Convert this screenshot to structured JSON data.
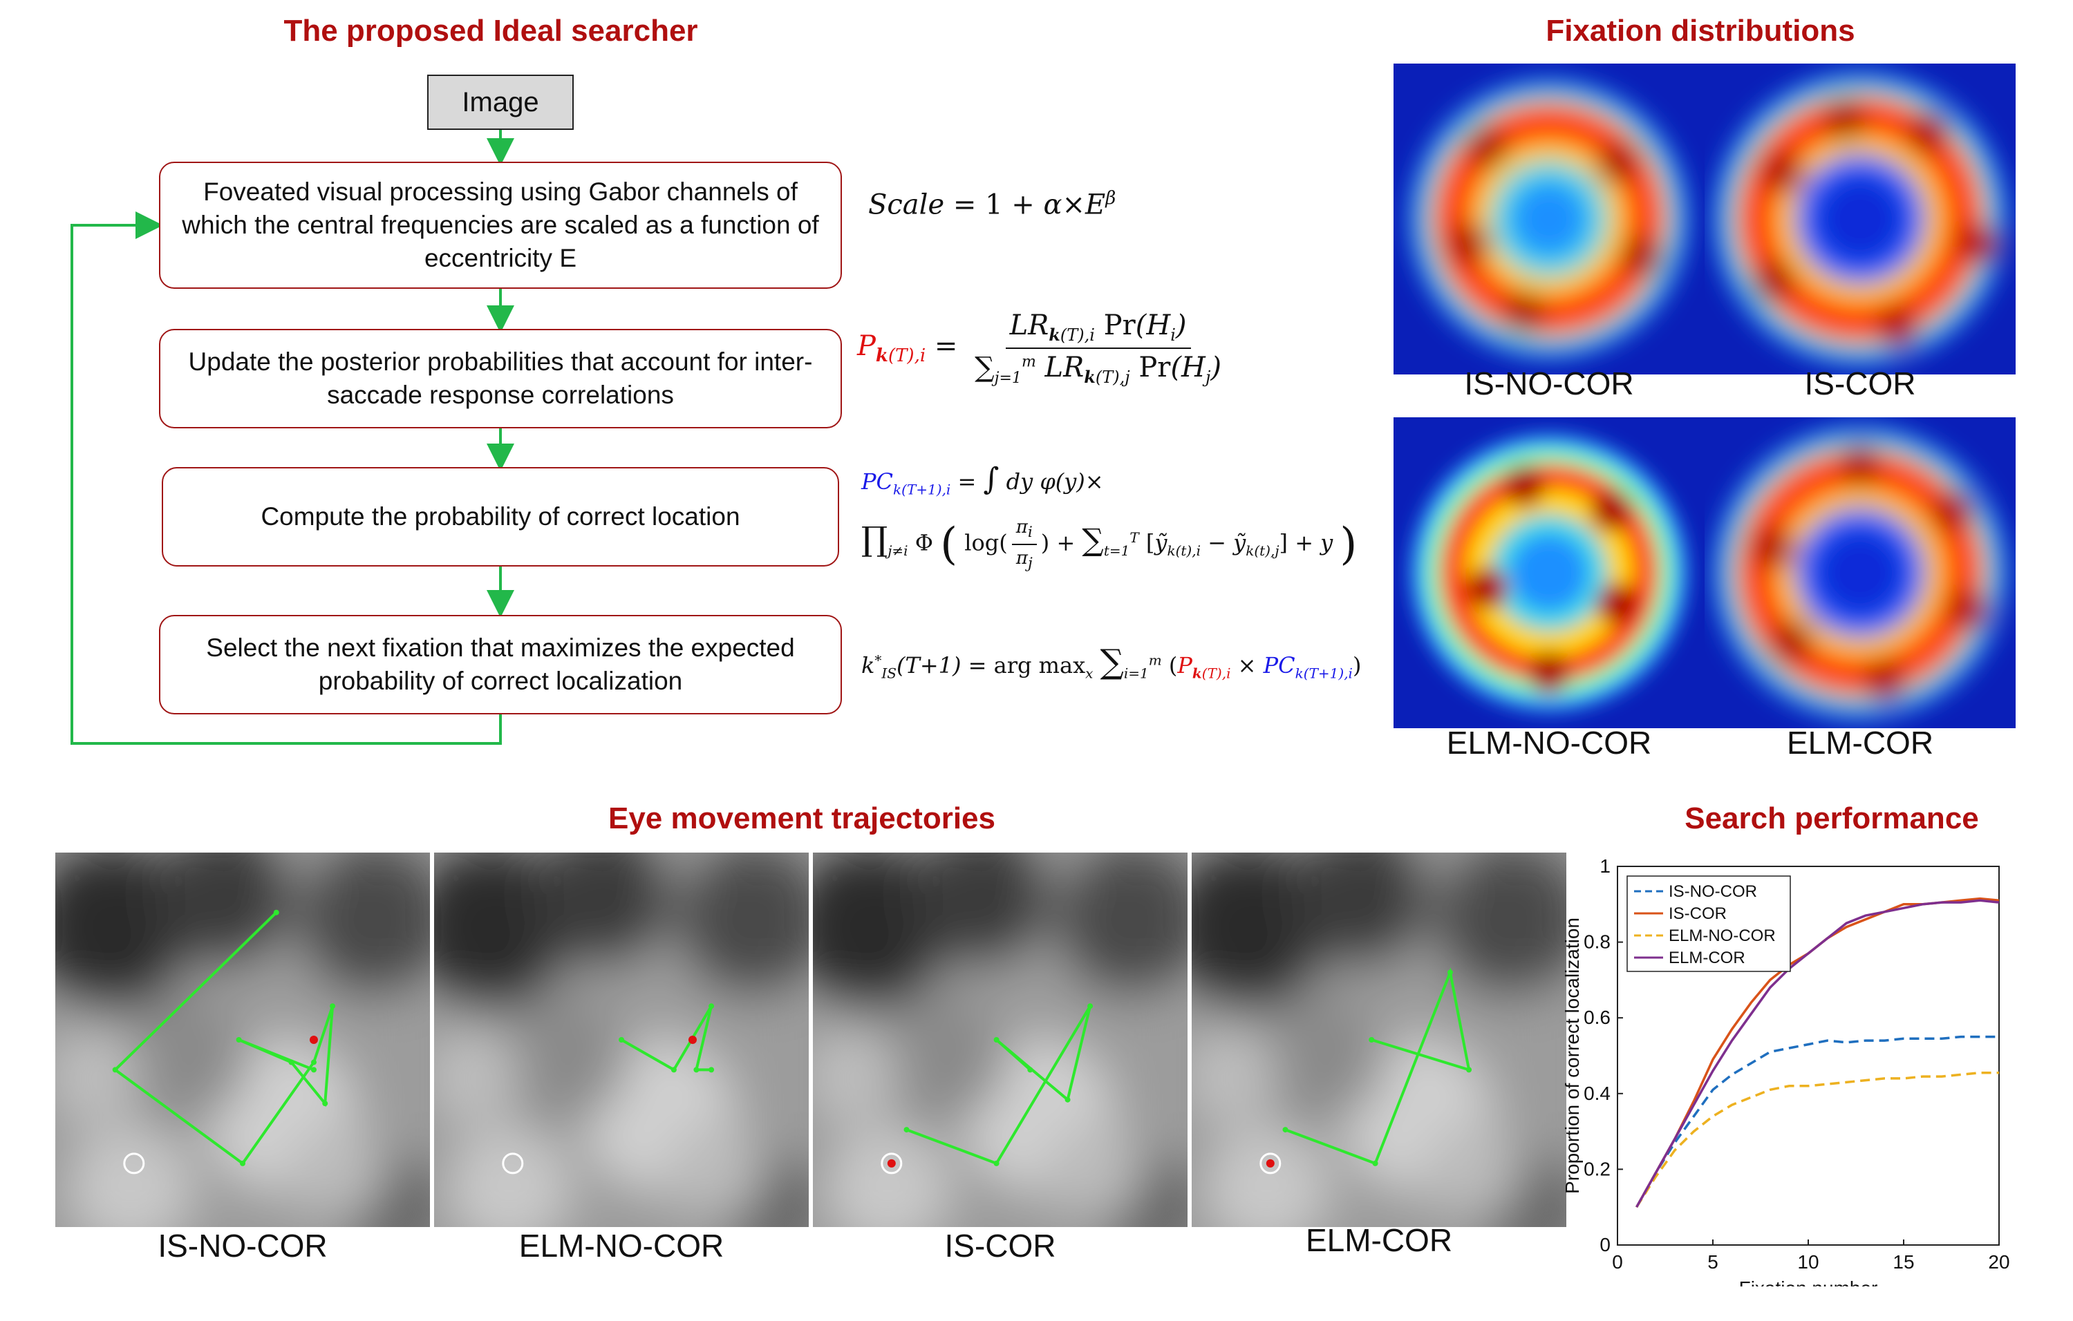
{
  "flowchart": {
    "title": "The proposed Ideal searcher",
    "image_label": "Image",
    "steps": [
      "Foveated visual processing using Gabor channels of which the central frequencies are scaled as a function of eccentricity E",
      "Update the posterior probabilities that account for inter-saccade response correlations",
      "Compute the probability of correct location",
      "Select the next fixation that maximizes the expected probability of correct localization"
    ],
    "arrow_color": "#22b84a",
    "box_border_color": "#a01616"
  },
  "equations": {
    "scale": "Scale = 1 + α×E^β",
    "posterior": "P_k(T),i = LR_k(T),i Pr(H_i) / Σ_{j=1}^{m} LR_k(T),j Pr(H_j)",
    "pc_line1": "PC_k(T+1),i = ∫ dy φ(y)×",
    "pc_line2": "∏_{j≠i} Φ( log(π_i/π_j) + Σ_{t=1}^{T} [ỹ_k(t),i − ỹ_k(t),j] + y )",
    "argmax": "k*_IS(T+1) = arg max_x Σ_{i=1}^{m} ( P_k(T),i × PC_k(T+1),i )"
  },
  "fixation_distributions": {
    "title": "Fixation distributions",
    "panels": [
      {
        "label": "IS-NO-COR",
        "colormap": "jet"
      },
      {
        "label": "IS-COR",
        "colormap": "jet"
      },
      {
        "label": "ELM-NO-COR",
        "colormap": "jet"
      },
      {
        "label": "ELM-COR",
        "colormap": "jet"
      }
    ]
  },
  "eye_movement": {
    "title": "Eye movement trajectories",
    "panels": [
      {
        "label": "IS-NO-COR",
        "found_target": false
      },
      {
        "label": "ELM-NO-COR",
        "found_target": false
      },
      {
        "label": "IS-COR",
        "found_target": true
      },
      {
        "label": "ELM-COR",
        "found_target": true
      }
    ],
    "path_color": "#2ee82e",
    "fixation_marker_color": "#e01010",
    "target_ring_color": "#ffffff"
  },
  "search_performance": {
    "title": "Search performance"
  },
  "chart_data": {
    "type": "line",
    "xlabel": "Fixation number",
    "ylabel": "Proportion of correct localization",
    "xlim": [
      0,
      20
    ],
    "ylim": [
      0,
      1
    ],
    "xticks": [
      "0",
      "5",
      "10",
      "15",
      "20"
    ],
    "yticks": [
      "0",
      "0.2",
      "0.4",
      "0.6",
      "0.8",
      "1"
    ],
    "legend_position": "top-left",
    "x": [
      1,
      2,
      3,
      4,
      5,
      6,
      7,
      8,
      9,
      10,
      11,
      12,
      13,
      14,
      15,
      16,
      17,
      18,
      19,
      20
    ],
    "series": [
      {
        "name": "IS-NO-COR",
        "style": "dashed",
        "color": "#1f6fbf",
        "values": [
          0.1,
          0.19,
          0.27,
          0.34,
          0.41,
          0.45,
          0.48,
          0.51,
          0.52,
          0.53,
          0.54,
          0.535,
          0.54,
          0.54,
          0.545,
          0.545,
          0.545,
          0.55,
          0.55,
          0.55
        ]
      },
      {
        "name": "IS-COR",
        "style": "solid",
        "color": "#d95319",
        "values": [
          0.1,
          0.19,
          0.28,
          0.38,
          0.49,
          0.57,
          0.64,
          0.7,
          0.74,
          0.77,
          0.81,
          0.84,
          0.86,
          0.88,
          0.9,
          0.9,
          0.905,
          0.91,
          0.915,
          0.91
        ]
      },
      {
        "name": "ELM-NO-COR",
        "style": "dashed",
        "color": "#edb120",
        "values": [
          0.1,
          0.18,
          0.25,
          0.3,
          0.34,
          0.37,
          0.39,
          0.41,
          0.42,
          0.42,
          0.425,
          0.43,
          0.435,
          0.44,
          0.44,
          0.445,
          0.445,
          0.45,
          0.455,
          0.455
        ]
      },
      {
        "name": "ELM-COR",
        "style": "solid",
        "color": "#7e2f8e",
        "values": [
          0.1,
          0.19,
          0.28,
          0.37,
          0.46,
          0.54,
          0.61,
          0.68,
          0.73,
          0.77,
          0.81,
          0.85,
          0.87,
          0.88,
          0.89,
          0.9,
          0.905,
          0.905,
          0.91,
          0.905
        ]
      }
    ]
  }
}
